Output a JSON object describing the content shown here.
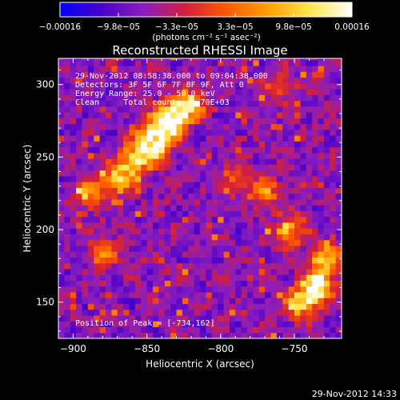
{
  "chart_data": {
    "type": "heatmap",
    "title": "Reconstructed RHESSI Image",
    "xlabel": "Heliocentric X (arcsec)",
    "ylabel": "Heliocentric Y (arcsec)",
    "xlim": [
      -910,
      -718
    ],
    "ylim": [
      125,
      318
    ],
    "x_ticks": [
      -900,
      -850,
      -800,
      -750
    ],
    "x_tick_labels": [
      "-900",
      "-850",
      "-800",
      "-750"
    ],
    "y_ticks": [
      150,
      200,
      250,
      300
    ],
    "y_tick_labels": [
      "150",
      "200",
      "250",
      "300"
    ],
    "colorbar": {
      "min": -0.00016,
      "max": 0.00016,
      "tick_labels": [
        "-0.00016",
        "-9.8e-05",
        "-3.3e-05",
        "3.3e-05",
        "9.8e-05",
        "0.00016"
      ],
      "units": "(photons cm⁻² s⁻¹ asec⁻²)",
      "stops": [
        "#0000ff",
        "#4b00c8",
        "#8a1ec0",
        "#d21e3c",
        "#ff5a00",
        "#ffa000",
        "#ffe650",
        "#ffffff"
      ]
    },
    "sources": [
      {
        "x": -845,
        "y": 263,
        "peak": 1.0,
        "note": "extended bright ridge"
      },
      {
        "x": -834,
        "y": 276,
        "peak": 0.95
      },
      {
        "x": -822,
        "y": 286,
        "peak": 0.85
      },
      {
        "x": -858,
        "y": 248,
        "peak": 0.8
      },
      {
        "x": -870,
        "y": 235,
        "peak": 0.7
      },
      {
        "x": -734,
        "y": 162,
        "peak": 1.0,
        "note": "peak"
      },
      {
        "x": -746,
        "y": 150,
        "peak": 0.85
      },
      {
        "x": -728,
        "y": 180,
        "peak": 0.75
      },
      {
        "x": -752,
        "y": 200,
        "peak": 0.55
      },
      {
        "x": -770,
        "y": 225,
        "peak": 0.5
      },
      {
        "x": -790,
        "y": 235,
        "peak": 0.45
      },
      {
        "x": -890,
        "y": 225,
        "peak": 0.55
      },
      {
        "x": -880,
        "y": 185,
        "peak": 0.45
      },
      {
        "x": -760,
        "y": 300,
        "peak": 0.35
      }
    ]
  },
  "annotations": [
    "29-Nov-2012 08:58:38.000 to 09:04:38.000",
    "Detectors: 3F 5F 6F 7F 8F 9F, Att 0",
    "Energy Range: 25.0 - 50.0 keV",
    "Clean     Total counts: 6.70E+03"
  ],
  "peak_label": "Position of Peak = [-734,162]",
  "footer_timestamp": "29-Nov-2012 14:33"
}
